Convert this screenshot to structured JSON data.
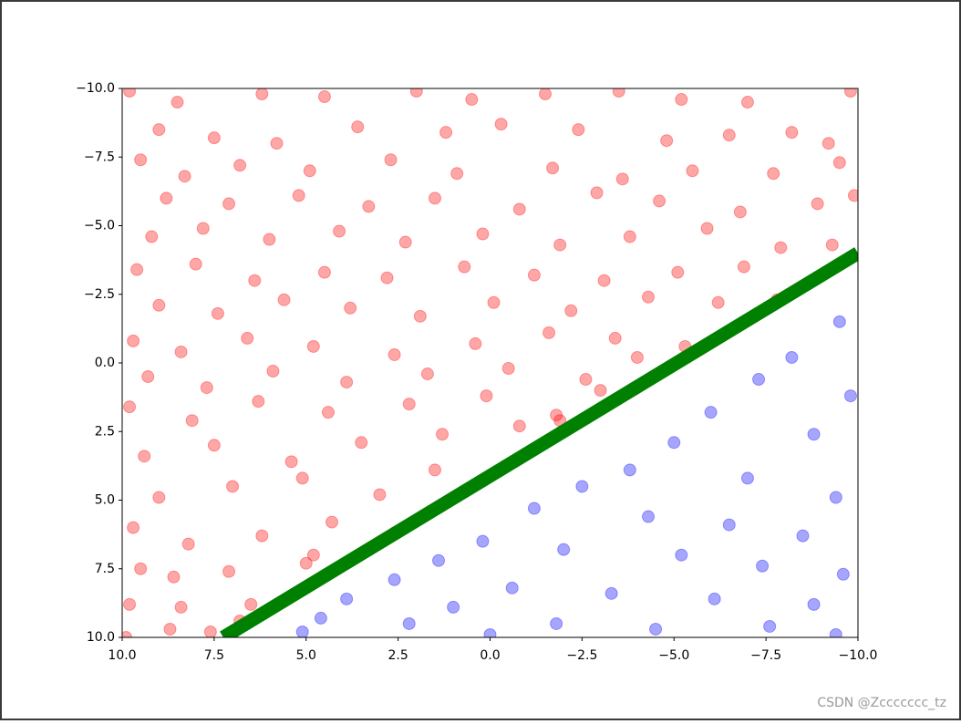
{
  "chart_data": {
    "type": "scatter",
    "xlim": [
      10,
      -10
    ],
    "ylim": [
      -10,
      10
    ],
    "xticks": [
      {
        "value": 10,
        "label": "10.0"
      },
      {
        "value": 7.5,
        "label": "7.5"
      },
      {
        "value": 5,
        "label": "5.0"
      },
      {
        "value": 2.5,
        "label": "2.5"
      },
      {
        "value": 0,
        "label": "0.0"
      },
      {
        "value": -2.5,
        "label": "−2.5"
      },
      {
        "value": -5,
        "label": "−5.0"
      },
      {
        "value": -7.5,
        "label": "−7.5"
      },
      {
        "value": -10,
        "label": "−10.0"
      }
    ],
    "yticks": [
      {
        "value": -10,
        "label": "−10.0"
      },
      {
        "value": -7.5,
        "label": "−7.5"
      },
      {
        "value": -5,
        "label": "−5.0"
      },
      {
        "value": -2.5,
        "label": "−2.5"
      },
      {
        "value": 0,
        "label": "0.0"
      },
      {
        "value": 2.5,
        "label": "2.5"
      },
      {
        "value": 5,
        "label": "5.0"
      },
      {
        "value": 7.5,
        "label": "7.5"
      },
      {
        "value": 10,
        "label": "10.0"
      }
    ],
    "series": [
      {
        "color": "#ff0000",
        "x": [
          9.8,
          8.5,
          6.2,
          4.5,
          2.0,
          0.5,
          -1.5,
          -3.5,
          -5.2,
          -7.0,
          -9.8,
          9.0,
          7.5,
          5.8,
          3.6,
          1.2,
          -0.3,
          -2.4,
          -4.8,
          -6.5,
          -8.2,
          -9.2,
          9.5,
          8.3,
          6.8,
          4.9,
          2.7,
          0.9,
          -1.7,
          -3.6,
          -5.5,
          -7.7,
          -9.5,
          8.8,
          7.1,
          5.2,
          3.3,
          1.5,
          -0.8,
          -2.9,
          -4.6,
          -6.8,
          -8.9,
          -9.9,
          9.2,
          7.8,
          6.0,
          4.1,
          2.3,
          0.2,
          -1.9,
          -3.8,
          -5.9,
          -7.9,
          -9.3,
          9.6,
          8.0,
          6.4,
          4.5,
          2.8,
          0.7,
          -1.2,
          -3.1,
          -5.1,
          -6.9,
          9.0,
          7.4,
          5.6,
          3.8,
          1.9,
          -0.1,
          -2.2,
          -4.3,
          -6.2,
          -7.8,
          9.7,
          8.4,
          6.6,
          4.8,
          2.6,
          0.4,
          -1.6,
          -3.4,
          -5.3,
          9.3,
          7.7,
          5.9,
          3.9,
          1.7,
          -0.5,
          -2.6,
          -4.0,
          9.8,
          8.1,
          6.3,
          4.4,
          2.2,
          0.1,
          -1.8,
          -3.0,
          9.4,
          7.5,
          5.4,
          3.5,
          1.3,
          -0.8,
          -1.9,
          9.0,
          7.0,
          5.1,
          3.0,
          1.5,
          9.7,
          8.2,
          6.2,
          4.3,
          2.6,
          9.5,
          8.6,
          7.1,
          5.0,
          4.8,
          9.8,
          8.4,
          6.5,
          6.8,
          9.9,
          7.6,
          8.7
        ],
        "y": [
          -9.9,
          -9.5,
          -9.8,
          -9.7,
          -9.9,
          -9.6,
          -9.8,
          -9.9,
          -9.6,
          -9.5,
          -9.9,
          -8.5,
          -8.2,
          -8.0,
          -8.6,
          -8.4,
          -8.7,
          -8.5,
          -8.1,
          -8.3,
          -8.4,
          -8.0,
          -7.4,
          -6.8,
          -7.2,
          -7.0,
          -7.4,
          -6.9,
          -7.1,
          -6.7,
          -7.0,
          -6.9,
          -7.3,
          -6.0,
          -5.8,
          -6.1,
          -5.7,
          -6.0,
          -5.6,
          -6.2,
          -5.9,
          -5.5,
          -5.8,
          -6.1,
          -4.6,
          -4.9,
          -4.5,
          -4.8,
          -4.4,
          -4.7,
          -4.3,
          -4.6,
          -4.9,
          -4.2,
          -4.3,
          -3.4,
          -3.6,
          -3.0,
          -3.3,
          -3.1,
          -3.5,
          -3.2,
          -3.0,
          -3.3,
          -3.5,
          -2.1,
          -1.8,
          -2.3,
          -2.0,
          -1.7,
          -2.2,
          -1.9,
          -2.4,
          -2.2,
          -2.3,
          -0.8,
          -0.4,
          -0.9,
          -0.6,
          -0.3,
          -0.7,
          -1.1,
          -0.9,
          -0.6,
          0.5,
          0.9,
          0.3,
          0.7,
          0.4,
          0.2,
          0.6,
          -0.2,
          1.6,
          2.1,
          1.4,
          1.8,
          1.5,
          1.2,
          1.9,
          1.0,
          3.4,
          3.0,
          3.6,
          2.9,
          2.6,
          2.3,
          2.1,
          4.9,
          4.5,
          4.2,
          4.8,
          3.9,
          6.0,
          6.6,
          6.3,
          5.8,
          6.2,
          7.5,
          7.8,
          7.6,
          7.3,
          7.0,
          8.8,
          8.9,
          8.8,
          9.4,
          10.0,
          9.8,
          9.7
        ]
      },
      {
        "color": "#0000ff",
        "x": [
          -9.5,
          -8.2,
          -9.8,
          -7.3,
          -6.0,
          -8.8,
          -5.0,
          -3.8,
          -2.5,
          -7.0,
          -9.4,
          -1.2,
          -4.3,
          -6.5,
          -8.5,
          0.2,
          -2.0,
          -5.2,
          -7.4,
          -9.6,
          1.4,
          2.6,
          -0.6,
          -3.3,
          -6.1,
          -8.8,
          3.9,
          1.0,
          4.6,
          -1.8,
          -4.5,
          -7.6,
          -9.4,
          2.2,
          5.1,
          0.0
        ],
        "y": [
          -1.5,
          -0.2,
          1.2,
          0.6,
          1.8,
          2.6,
          2.9,
          3.9,
          4.5,
          4.2,
          4.9,
          5.3,
          5.6,
          5.9,
          6.3,
          6.5,
          6.8,
          7.0,
          7.4,
          7.7,
          7.2,
          7.9,
          8.2,
          8.4,
          8.6,
          8.8,
          8.6,
          8.9,
          9.3,
          9.5,
          9.7,
          9.6,
          9.9,
          9.5,
          9.8,
          9.9
        ]
      },
      {
        "type": "line",
        "color": "#008000",
        "x": [
          7.25,
          -10
        ],
        "y": [
          10,
          -4.0
        ]
      }
    ]
  },
  "watermark": "CSDN @Zccccccc_tz"
}
